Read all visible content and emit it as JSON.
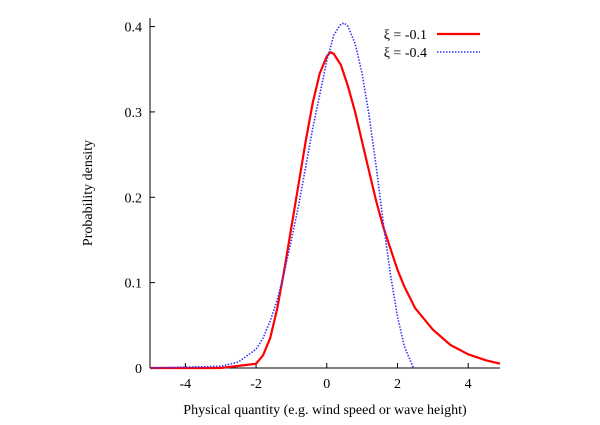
{
  "chart_data": {
    "type": "line",
    "xlabel": "Physical quantity (e.g. wind speed or wave height)",
    "ylabel": "Probability density",
    "xlim": [
      -5,
      4.9
    ],
    "ylim": [
      0,
      0.41
    ],
    "x_ticks": [
      -4,
      -2,
      0,
      2,
      4
    ],
    "y_ticks": [
      0,
      0.1,
      0.2,
      0.3,
      0.4
    ],
    "x_tick_labels": [
      "-4",
      "-2",
      "0",
      "2",
      "4"
    ],
    "y_tick_labels": [
      "0",
      "0.1",
      "0.2",
      "0.3",
      "0.4"
    ],
    "grid": false,
    "legend_position": "top-right",
    "series": [
      {
        "name": "ξ = -0.1",
        "color": "#ff0000",
        "line_style": "solid",
        "x": [
          -5.0,
          -3.0,
          -2.0,
          -1.8,
          -1.6,
          -1.4,
          -1.2,
          -1.0,
          -0.8,
          -0.6,
          -0.4,
          -0.2,
          0.0,
          0.1,
          0.2,
          0.4,
          0.6,
          0.8,
          1.0,
          1.2,
          1.4,
          1.6,
          1.8,
          2.0,
          2.2,
          2.5,
          3.0,
          3.5,
          4.0,
          4.5,
          4.9
        ],
        "y": [
          0.0,
          0.0,
          0.005,
          0.015,
          0.035,
          0.07,
          0.115,
          0.165,
          0.215,
          0.265,
          0.31,
          0.345,
          0.365,
          0.37,
          0.368,
          0.355,
          0.33,
          0.3,
          0.265,
          0.23,
          0.195,
          0.165,
          0.14,
          0.115,
          0.095,
          0.07,
          0.045,
          0.027,
          0.016,
          0.009,
          0.005
        ]
      },
      {
        "name": "ξ = -0.4",
        "color": "#3333ff",
        "line_style": "dotted",
        "x": [
          -5.0,
          -3.0,
          -2.5,
          -2.0,
          -1.8,
          -1.6,
          -1.4,
          -1.2,
          -1.0,
          -0.8,
          -0.6,
          -0.4,
          -0.2,
          0.0,
          0.2,
          0.4,
          0.5,
          0.6,
          0.8,
          1.0,
          1.2,
          1.4,
          1.6,
          1.8,
          2.0,
          2.2,
          2.4,
          2.45
        ],
        "y": [
          0.0,
          0.002,
          0.007,
          0.022,
          0.035,
          0.055,
          0.08,
          0.112,
          0.15,
          0.19,
          0.235,
          0.28,
          0.32,
          0.36,
          0.39,
          0.403,
          0.404,
          0.4,
          0.38,
          0.345,
          0.295,
          0.235,
          0.17,
          0.11,
          0.06,
          0.025,
          0.005,
          0.0
        ]
      }
    ]
  }
}
